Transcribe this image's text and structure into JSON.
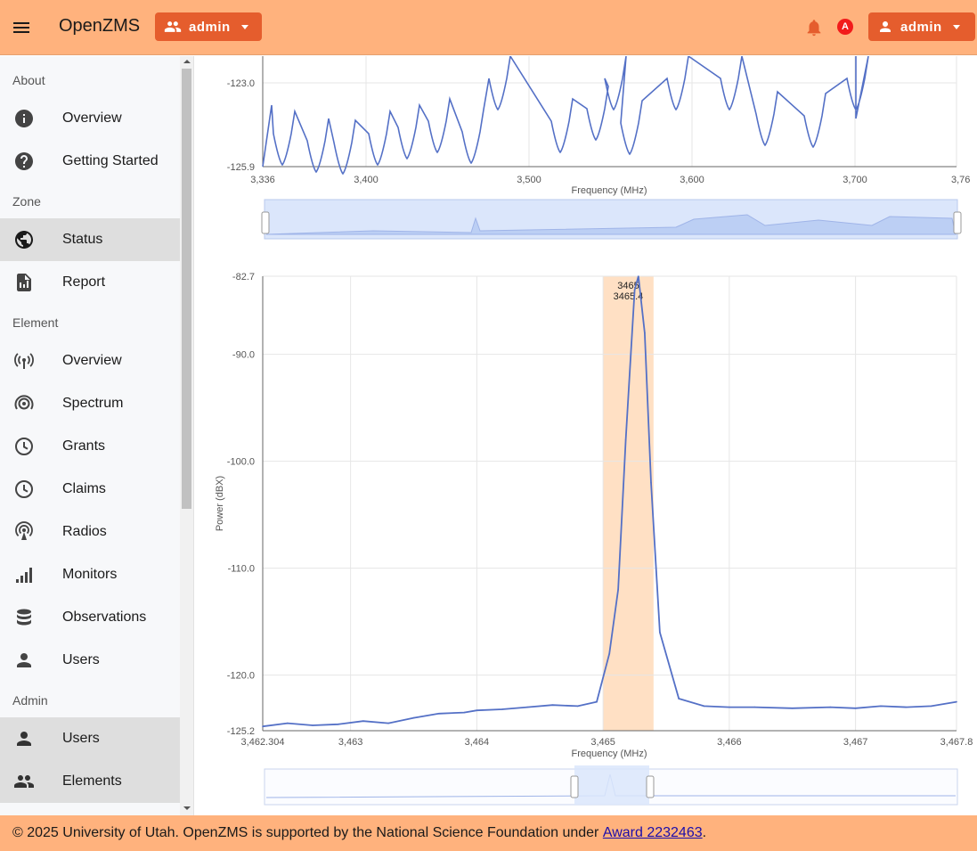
{
  "header": {
    "title": "OpenZMS",
    "workspace_label": "admin",
    "user_label": "admin",
    "avatar_letter": "A"
  },
  "sidebar": {
    "sections": [
      {
        "title": "About",
        "items": [
          {
            "label": "Overview",
            "icon": "info-icon"
          },
          {
            "label": "Getting Started",
            "icon": "help-icon"
          }
        ]
      },
      {
        "title": "Zone",
        "items": [
          {
            "label": "Status",
            "icon": "globe-icon",
            "active": true
          },
          {
            "label": "Report",
            "icon": "report-icon"
          }
        ]
      },
      {
        "title": "Element",
        "items": [
          {
            "label": "Overview",
            "icon": "antenna-icon"
          },
          {
            "label": "Spectrum",
            "icon": "spectrum-icon"
          },
          {
            "label": "Grants",
            "icon": "clock-icon"
          },
          {
            "label": "Claims",
            "icon": "clock-icon"
          },
          {
            "label": "Radios",
            "icon": "radio-icon"
          },
          {
            "label": "Monitors",
            "icon": "signal-bars-icon"
          },
          {
            "label": "Observations",
            "icon": "database-icon"
          },
          {
            "label": "Users",
            "icon": "person-icon"
          }
        ]
      },
      {
        "title": "Admin",
        "items": [
          {
            "label": "Users",
            "icon": "person-icon",
            "active": true
          },
          {
            "label": "Elements",
            "icon": "group-icon",
            "active": true
          }
        ]
      }
    ]
  },
  "chart_data": [
    {
      "type": "line",
      "title": "",
      "xlabel": "Frequency (MHz)",
      "ylabel": "",
      "visible_yticks": [
        "-123.0",
        "-125.9"
      ],
      "xticks": [
        "3,336",
        "3,400",
        "3,500",
        "3,600",
        "3,700",
        "3,76"
      ],
      "note": "upper part of chart scrolled out of view; with range-slider navigator below"
    },
    {
      "type": "line",
      "title": "",
      "xlabel": "Frequency (MHz)",
      "ylabel": "Power (dBX)",
      "xlim": [
        3462.304,
        3467.8
      ],
      "ylim": [
        -125.2,
        -82.7
      ],
      "yticks": [
        "-82.7",
        "-90.0",
        "-100.0",
        "-110.0",
        "-120.0",
        "-125.2"
      ],
      "xticks": [
        "3,462.304",
        "3,463",
        "3,464",
        "3,465",
        "3,466",
        "3,467",
        "3,467.8"
      ],
      "highlight_band": {
        "from": 3465.0,
        "to": 3465.4,
        "labels": [
          "3465",
          "3465.4"
        ]
      },
      "series": [
        {
          "name": "power",
          "x": [
            3462.304,
            3462.5,
            3462.7,
            3462.9,
            3463.1,
            3463.3,
            3463.5,
            3463.7,
            3463.9,
            3464.0,
            3464.2,
            3464.4,
            3464.6,
            3464.8,
            3464.95,
            3465.05,
            3465.12,
            3465.18,
            3465.22,
            3465.25,
            3465.28,
            3465.33,
            3465.38,
            3465.45,
            3465.6,
            3465.8,
            3466.0,
            3466.2,
            3466.5,
            3466.8,
            3467.0,
            3467.2,
            3467.4,
            3467.6,
            3467.8
          ],
          "values": [
            -124.8,
            -124.5,
            -124.7,
            -124.6,
            -124.3,
            -124.5,
            -124.0,
            -123.6,
            -123.5,
            -123.3,
            -123.2,
            -123.0,
            -122.8,
            -122.9,
            -122.5,
            -118.0,
            -112.0,
            -98.0,
            -90.0,
            -84.0,
            -82.7,
            -88.0,
            -102.0,
            -116.0,
            -122.2,
            -122.9,
            -123.0,
            -123.0,
            -123.1,
            -123.0,
            -123.1,
            -122.9,
            -123.0,
            -122.9,
            -122.5
          ]
        }
      ]
    }
  ],
  "footer": {
    "text": "© 2025 University of Utah. OpenZMS is supported by the National Science Foundation under ",
    "link_text": "Award 2232463",
    "suffix": "."
  }
}
